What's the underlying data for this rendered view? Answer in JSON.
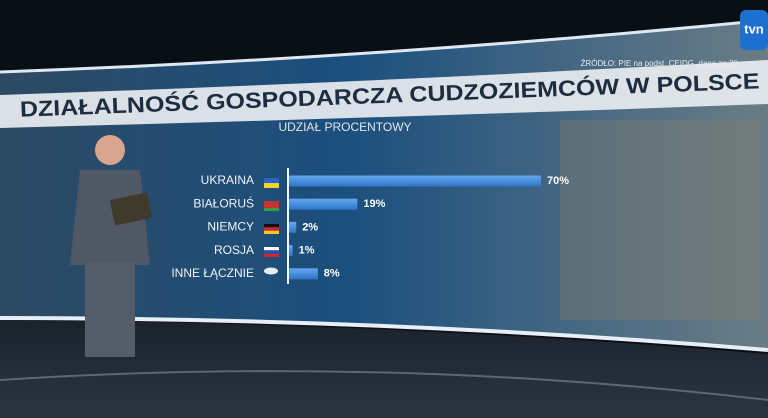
{
  "chart_data": {
    "type": "bar",
    "orientation": "horizontal",
    "title": "DZIAŁALNOŚĆ GOSPODARCZA CUDZOZIEMCÓW W POLSCE",
    "subtitle": "UDZIAŁ PROCENTOWY",
    "source": "ŹRÓDŁO: PIE na podst. CEIDG, dane za 20",
    "logo": "tvn",
    "categories": [
      "UKRAINA",
      "BIAŁORUŚ",
      "NIEMCY",
      "ROSJA",
      "INNE ŁĄCZNIE"
    ],
    "values": [
      70,
      19,
      2,
      1,
      8
    ],
    "value_labels": [
      "70%",
      "19%",
      "2%",
      "1%",
      "8%"
    ],
    "color": "#3f8ee0"
  }
}
